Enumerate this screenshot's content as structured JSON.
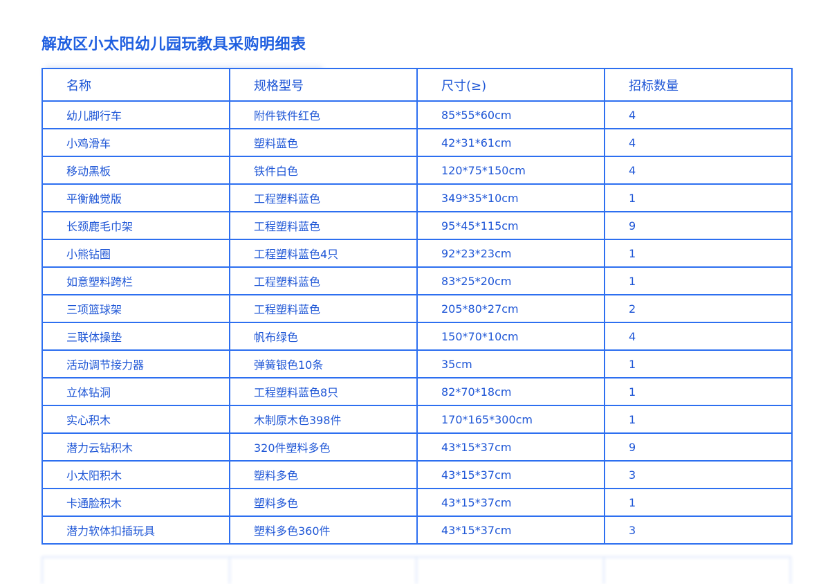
{
  "document": {
    "title": "解放区小太阳幼儿园玩教具采购明细表",
    "colors": {
      "accent": "#1f5fe0",
      "border": "#2d6ff0",
      "text": "#1e56d6"
    }
  },
  "table": {
    "headers": [
      "名称",
      "规格型号",
      "尺寸(≥)",
      "招标数量"
    ],
    "rows": [
      [
        "幼儿脚行车",
        "附件铁件红色",
        "85*55*60cm",
        "4"
      ],
      [
        "小鸡滑车",
        "塑料蓝色",
        "42*31*61cm",
        "4"
      ],
      [
        "移动黑板",
        "铁件白色",
        "120*75*150cm",
        "4"
      ],
      [
        "平衡触觉版",
        "工程塑料蓝色",
        "349*35*10cm",
        "1"
      ],
      [
        "长颈鹿毛巾架",
        "工程塑料蓝色",
        "95*45*115cm",
        "9"
      ],
      [
        "小熊钻圈",
        "工程塑料蓝色4只",
        "92*23*23cm",
        "1"
      ],
      [
        "如意塑料跨栏",
        "工程塑料蓝色",
        "83*25*20cm",
        "1"
      ],
      [
        "三项篮球架",
        "工程塑料蓝色",
        "205*80*27cm",
        "2"
      ],
      [
        "三联体操垫",
        "帆布绿色",
        "150*70*10cm",
        "4"
      ],
      [
        "活动调节接力器",
        "弹簧银色10条",
        "35cm",
        "1"
      ],
      [
        "立体钻洞",
        "工程塑料蓝色8只",
        "82*70*18cm",
        "1"
      ],
      [
        "实心积木",
        "木制原木色398件",
        "170*165*300cm",
        "1"
      ],
      [
        "潜力云钻积木",
        "320件塑料多色",
        "43*15*37cm",
        "9"
      ],
      [
        "小太阳积木",
        "塑料多色",
        "43*15*37cm",
        "3"
      ],
      [
        "卡通脸积木",
        "塑料多色",
        "43*15*37cm",
        "1"
      ],
      [
        "潜力软体扣插玩具",
        "塑料多色360件",
        "43*15*37cm",
        "3"
      ]
    ]
  }
}
